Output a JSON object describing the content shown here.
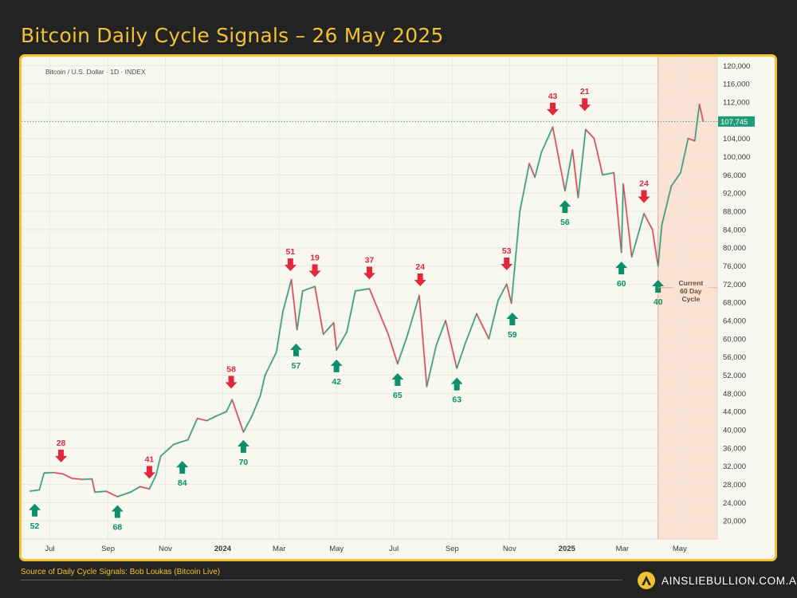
{
  "page": {
    "title": "Bitcoin Daily Cycle Signals – 26 May 2025",
    "source": "Source of Daily Cycle Signals: Bob Loukas (Bitcoin Live)",
    "brand": "AINSLIEBULLION.COM.AU"
  },
  "colors": {
    "accent": "#f2c233",
    "background": "#232323",
    "up": "#22a07f",
    "down": "#e0404f",
    "sell_arrow": "#e0283c",
    "buy_arrow": "#0c8f6a",
    "cycle_band": "#fbe2d2"
  },
  "chart_data": {
    "type": "line",
    "title": "Bitcoin / U.S. Dollar · 1D · INDEX",
    "xlabel": "",
    "ylabel": "",
    "x_ticks": [
      "Jul",
      "Sep",
      "Nov",
      "2024",
      "Mar",
      "May",
      "Jul",
      "Sep",
      "Nov",
      "2025",
      "Mar",
      "May"
    ],
    "x_tick_dates": [
      "2023-07-01",
      "2023-09-01",
      "2023-11-01",
      "2024-01-01",
      "2024-03-01",
      "2024-05-01",
      "2024-07-01",
      "2024-09-01",
      "2024-11-01",
      "2025-01-01",
      "2025-03-01",
      "2025-05-01"
    ],
    "xlim": [
      "2023-06-01",
      "2025-06-10"
    ],
    "ylim": [
      16000,
      122000
    ],
    "y_ticks": [
      20000,
      24000,
      28000,
      32000,
      36000,
      40000,
      44000,
      48000,
      52000,
      56000,
      60000,
      64000,
      68000,
      72000,
      76000,
      80000,
      84000,
      88000,
      92000,
      96000,
      100000,
      104000,
      108000,
      112000,
      116000,
      120000
    ],
    "y_tick_labels": [
      "20,000",
      "24,000",
      "28,000",
      "32,000",
      "36,000",
      "40,000",
      "44,000",
      "48,000",
      "52,000",
      "56,000",
      "60,000",
      "64,000",
      "68,000",
      "72,000",
      "76,000",
      "80,000",
      "84,000",
      "88,000",
      "92,000",
      "96,000",
      "100,000",
      "104,000",
      "108,000",
      "112,000",
      "116,000",
      "120,000"
    ],
    "grid": true,
    "series": [
      {
        "points": [
          [
            "2023-06-10",
            26500
          ],
          [
            "2023-06-20",
            26800
          ],
          [
            "2023-06-25",
            30500
          ],
          [
            "2023-07-05",
            30600
          ],
          [
            "2023-07-15",
            30300
          ],
          [
            "2023-07-25",
            29300
          ],
          [
            "2023-08-05",
            29100
          ],
          [
            "2023-08-15",
            29200
          ],
          [
            "2023-08-18",
            26300
          ],
          [
            "2023-08-30",
            26500
          ],
          [
            "2023-09-11",
            25300
          ],
          [
            "2023-09-25",
            26300
          ],
          [
            "2023-10-05",
            27500
          ],
          [
            "2023-10-15",
            27000
          ],
          [
            "2023-10-22",
            30000
          ],
          [
            "2023-10-27",
            34200
          ],
          [
            "2023-11-10",
            36800
          ],
          [
            "2023-11-25",
            37800
          ],
          [
            "2023-12-05",
            42500
          ],
          [
            "2023-12-15",
            42000
          ],
          [
            "2023-12-25",
            43000
          ],
          [
            "2024-01-05",
            44000
          ],
          [
            "2024-01-11",
            46600
          ],
          [
            "2024-01-23",
            39500
          ],
          [
            "2024-02-01",
            43000
          ],
          [
            "2024-02-10",
            47500
          ],
          [
            "2024-02-15",
            52000
          ],
          [
            "2024-02-27",
            57000
          ],
          [
            "2024-03-05",
            66000
          ],
          [
            "2024-03-14",
            73000
          ],
          [
            "2024-03-20",
            62000
          ],
          [
            "2024-03-26",
            70500
          ],
          [
            "2024-04-08",
            71500
          ],
          [
            "2024-04-17",
            61000
          ],
          [
            "2024-04-28",
            63500
          ],
          [
            "2024-05-01",
            57500
          ],
          [
            "2024-05-12",
            61500
          ],
          [
            "2024-05-21",
            70500
          ],
          [
            "2024-06-05",
            71000
          ],
          [
            "2024-06-15",
            66000
          ],
          [
            "2024-06-25",
            61000
          ],
          [
            "2024-07-05",
            54500
          ],
          [
            "2024-07-15",
            60500
          ],
          [
            "2024-07-28",
            69500
          ],
          [
            "2024-08-05",
            49500
          ],
          [
            "2024-08-15",
            58500
          ],
          [
            "2024-08-25",
            64000
          ],
          [
            "2024-09-06",
            53500
          ],
          [
            "2024-09-15",
            59000
          ],
          [
            "2024-09-27",
            65500
          ],
          [
            "2024-10-10",
            60000
          ],
          [
            "2024-10-20",
            68500
          ],
          [
            "2024-10-29",
            72000
          ],
          [
            "2024-11-03",
            67800
          ],
          [
            "2024-11-12",
            88000
          ],
          [
            "2024-11-22",
            98500
          ],
          [
            "2024-11-28",
            95500
          ],
          [
            "2024-12-05",
            101000
          ],
          [
            "2024-12-17",
            106500
          ],
          [
            "2024-12-30",
            92500
          ],
          [
            "2025-01-07",
            101500
          ],
          [
            "2025-01-13",
            91000
          ],
          [
            "2025-01-21",
            106000
          ],
          [
            "2025-01-30",
            104000
          ],
          [
            "2025-02-08",
            96000
          ],
          [
            "2025-02-20",
            96500
          ],
          [
            "2025-02-28",
            79000
          ],
          [
            "2025-03-02",
            94000
          ],
          [
            "2025-03-11",
            78000
          ],
          [
            "2025-03-24",
            87500
          ],
          [
            "2025-04-02",
            84000
          ],
          [
            "2025-04-08",
            76000
          ],
          [
            "2025-04-12",
            85000
          ],
          [
            "2025-04-22",
            93500
          ],
          [
            "2025-05-02",
            96500
          ],
          [
            "2025-05-10",
            104000
          ],
          [
            "2025-05-17",
            103500
          ],
          [
            "2025-05-22",
            111500
          ],
          [
            "2025-05-26",
            107745
          ]
        ]
      }
    ],
    "last_price": {
      "value": 107745,
      "label": "107,745"
    },
    "annotations": [
      {
        "type": "buy",
        "label": "52",
        "date": "2023-06-15",
        "price": 24800
      },
      {
        "type": "sell",
        "label": "28",
        "date": "2023-07-13",
        "price": 31800
      },
      {
        "type": "buy",
        "label": "68",
        "date": "2023-09-11",
        "price": 24500
      },
      {
        "type": "sell",
        "label": "41",
        "date": "2023-10-15",
        "price": 28200
      },
      {
        "type": "buy",
        "label": "84",
        "date": "2023-11-19",
        "price": 34200
      },
      {
        "type": "sell",
        "label": "58",
        "date": "2024-01-10",
        "price": 48000
      },
      {
        "type": "buy",
        "label": "70",
        "date": "2024-01-23",
        "price": 38800
      },
      {
        "type": "sell",
        "label": "51",
        "date": "2024-03-13",
        "price": 73800
      },
      {
        "type": "buy",
        "label": "57",
        "date": "2024-03-19",
        "price": 60000
      },
      {
        "type": "sell",
        "label": "19",
        "date": "2024-04-08",
        "price": 72500
      },
      {
        "type": "buy",
        "label": "42",
        "date": "2024-05-01",
        "price": 56500
      },
      {
        "type": "sell",
        "label": "37",
        "date": "2024-06-05",
        "price": 72000
      },
      {
        "type": "buy",
        "label": "65",
        "date": "2024-07-05",
        "price": 53500
      },
      {
        "type": "sell",
        "label": "24",
        "date": "2024-07-29",
        "price": 70500
      },
      {
        "type": "buy",
        "label": "63",
        "date": "2024-09-06",
        "price": 52500
      },
      {
        "type": "sell",
        "label": "53",
        "date": "2024-10-29",
        "price": 74000
      },
      {
        "type": "buy",
        "label": "59",
        "date": "2024-11-04",
        "price": 66800
      },
      {
        "type": "sell",
        "label": "43",
        "date": "2024-12-17",
        "price": 108000
      },
      {
        "type": "buy",
        "label": "56",
        "date": "2024-12-30",
        "price": 91500
      },
      {
        "type": "sell",
        "label": "21",
        "date": "2025-01-20",
        "price": 109000
      },
      {
        "type": "buy",
        "label": "60",
        "date": "2025-02-28",
        "price": 78000
      },
      {
        "type": "sell",
        "label": "24",
        "date": "2025-03-24",
        "price": 88800
      },
      {
        "type": "buy",
        "label": "40",
        "date": "2025-04-08",
        "price": 74000
      }
    ],
    "cycle_band": {
      "start": "2025-04-08",
      "end": "2025-06-10",
      "label": "Current 60 Day Cycle"
    }
  }
}
